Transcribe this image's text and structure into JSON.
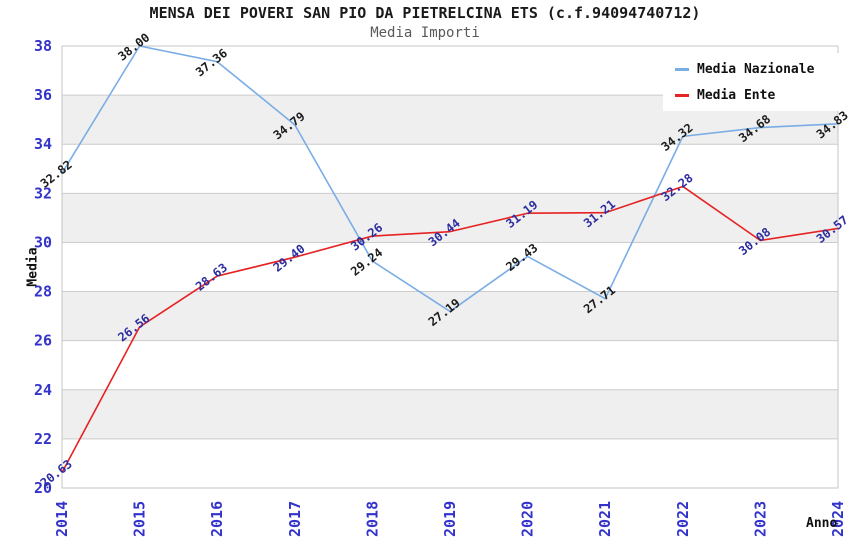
{
  "header": {
    "title": "MENSA DEI POVERI SAN PIO DA PIETRELCINA ETS (c.f.94094740712)",
    "subtitle": "Media Importi"
  },
  "legend": {
    "items": [
      {
        "label": "Media Nazionale",
        "color": "#7aade6"
      },
      {
        "label": "Media Ente",
        "color": "#e62222"
      }
    ]
  },
  "axes": {
    "y_label": "Media",
    "x_label": "Anno",
    "tick_color": "#3333cc",
    "gridline_color": "#cccccc",
    "border_color": "#c6c6c6"
  },
  "chart_data": {
    "type": "line",
    "title": "MENSA DEI POVERI SAN PIO DA PIETRELCINA ETS (c.f.94094740712)",
    "subtitle": "Media Importi",
    "xlabel": "Anno",
    "ylabel": "Media",
    "x": [
      "2014",
      "2015",
      "2016",
      "2017",
      "2018",
      "2019",
      "2020",
      "2021",
      "2022",
      "2023",
      "2024"
    ],
    "ylim": [
      20,
      38
    ],
    "y_tick_step": 2,
    "y_ticks": [
      20,
      22,
      24,
      26,
      28,
      30,
      32,
      34,
      36,
      38
    ],
    "grid": true,
    "legend_position": "top-right",
    "band_colors": [
      "#ffffff",
      "#efefef"
    ],
    "series": [
      {
        "name": "Media Nazionale",
        "color": "#7aade6",
        "label_color": "#1c1c1c",
        "values": [
          32.82,
          38.0,
          37.36,
          34.79,
          29.24,
          27.19,
          29.43,
          27.71,
          34.32,
          34.68,
          34.83
        ]
      },
      {
        "name": "Media Ente",
        "color": "#e62222",
        "label_color": "#2d2da0",
        "values": [
          20.63,
          26.56,
          28.63,
          29.4,
          30.26,
          30.44,
          31.19,
          31.21,
          32.28,
          30.08,
          30.57
        ]
      }
    ]
  }
}
